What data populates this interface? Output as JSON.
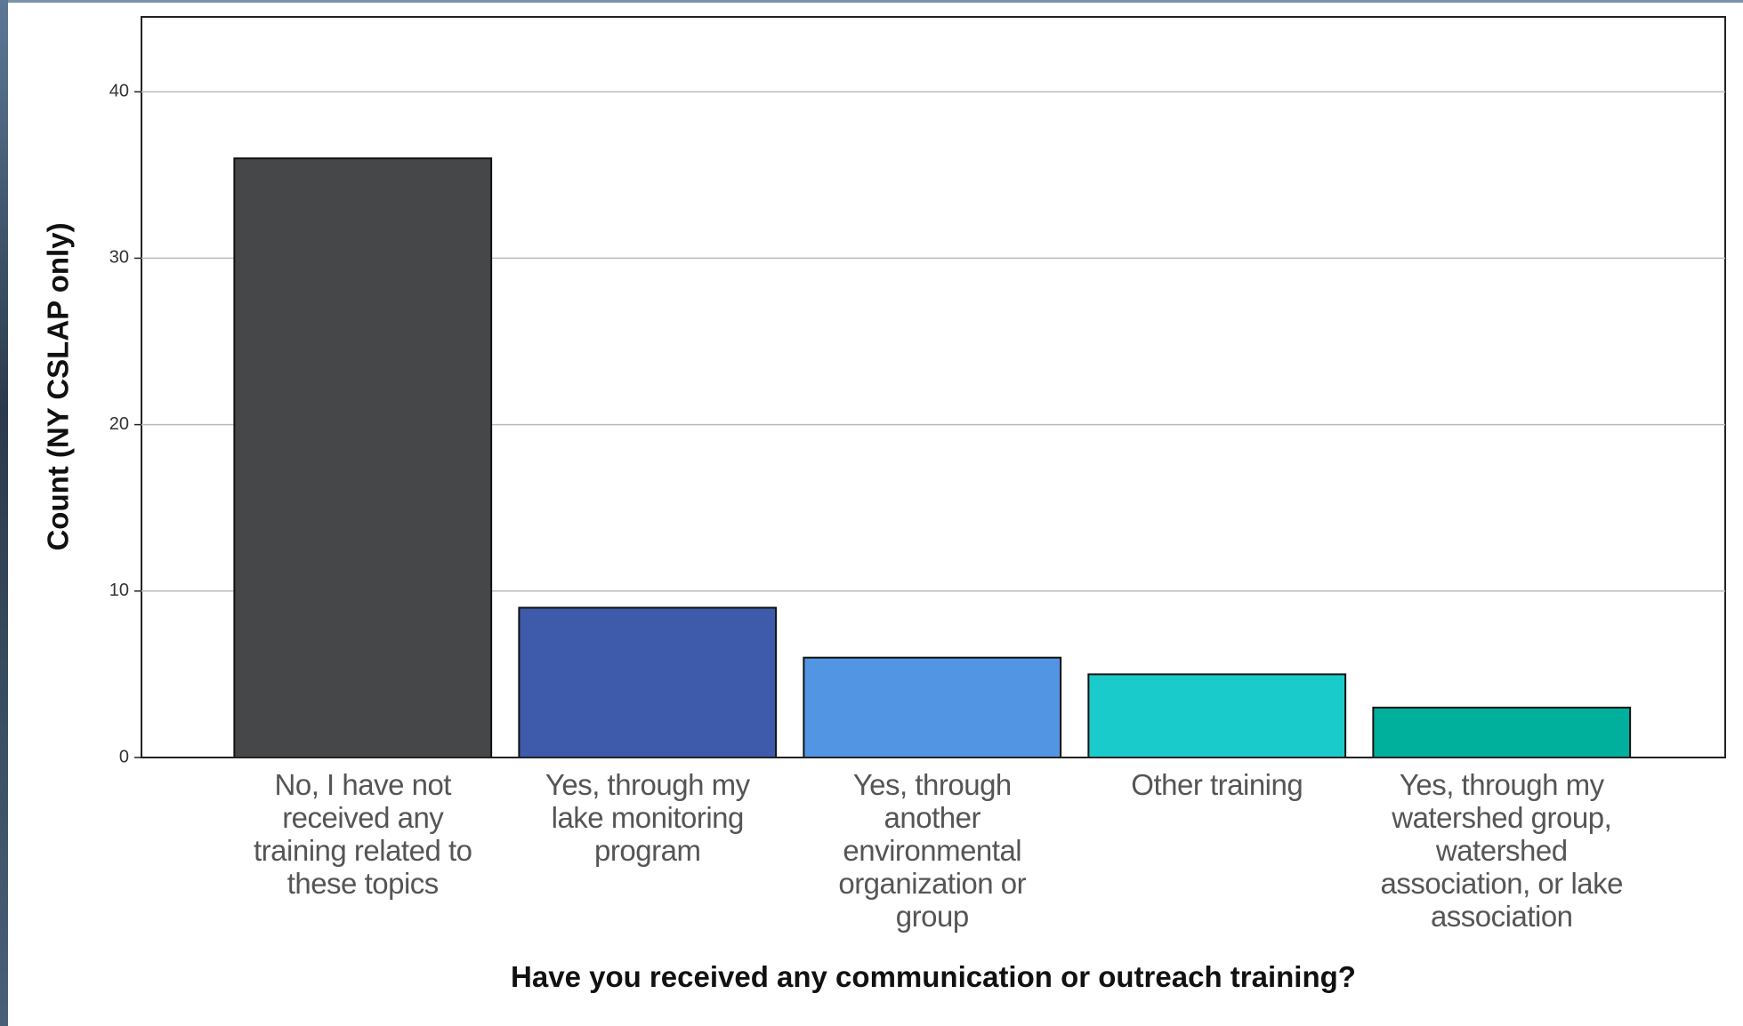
{
  "chart_data": {
    "type": "bar",
    "x_label": "Have you received any communication or outreach training?",
    "y_label": "Count (NY CSLAP only)",
    "categories": [
      "No, I have not received any training related to these topics",
      "Yes, through my lake monitoring program",
      "Yes, through another environmental organization or group",
      "Other training",
      "Yes, through my watershed group, watershed association, or lake association"
    ],
    "values": [
      36,
      9,
      6,
      5,
      3
    ],
    "colors": [
      "#464749",
      "#3e5aab",
      "#5295e3",
      "#1acbcb",
      "#00b09c"
    ],
    "ylim": [
      0,
      44.5
    ],
    "yticks": [
      0,
      10,
      20,
      30,
      40
    ],
    "grid": true
  }
}
